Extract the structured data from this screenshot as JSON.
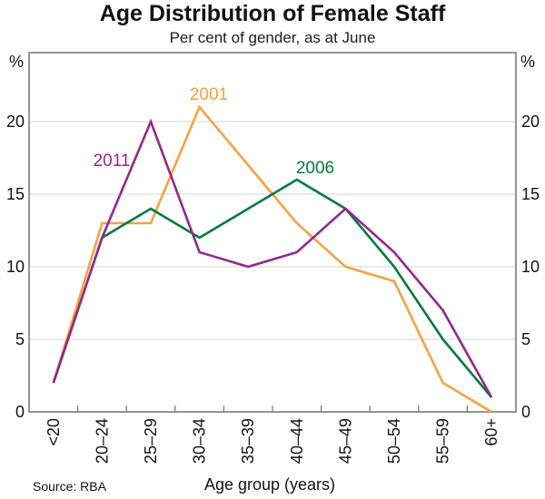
{
  "title": "Age Distribution of Female Staff",
  "subtitle": "Per cent of gender, as at June",
  "unit_left": "%",
  "unit_right": "%",
  "xlabel": "Age group (years)",
  "source": "Source: RBA",
  "colors": {
    "series_2001": "#F9A13E",
    "series_2006": "#007A3D",
    "series_2011": "#93278F",
    "gridline": "#D4D4D4",
    "frame": "#7B7B7B",
    "text": "#121212"
  },
  "chart_data": {
    "type": "line",
    "title": "Age Distribution of Female Staff",
    "subtitle": "Per cent of gender, as at June",
    "xlabel": "Age group (years)",
    "ylabel_left": "%",
    "ylabel_right": "%",
    "categories": [
      "<20",
      "20–24",
      "25–29",
      "30–34",
      "35–39",
      "40–44",
      "45–49",
      "50–54",
      "55–59",
      "60+"
    ],
    "series": [
      {
        "name": "2001",
        "color": "#F9A13E",
        "values": [
          2,
          13,
          13,
          21,
          17,
          13,
          10,
          9,
          2,
          0
        ],
        "label_x": 230,
        "label_y": 110
      },
      {
        "name": "2006",
        "color": "#007A3D",
        "values": [
          2,
          12,
          14,
          12,
          14,
          16,
          14,
          10,
          5,
          1
        ],
        "label_x": 347,
        "label_y": 191
      },
      {
        "name": "2011",
        "color": "#93278F",
        "values": [
          2,
          12,
          20,
          11,
          10,
          11,
          14,
          11,
          7,
          1
        ],
        "label_x": 123,
        "label_y": 183
      }
    ],
    "yticks": [
      0,
      5,
      10,
      15,
      20
    ],
    "ylim": [
      0,
      24.75
    ],
    "grid": true,
    "legend_position": "inline-labels",
    "source": "Source: RBA"
  }
}
